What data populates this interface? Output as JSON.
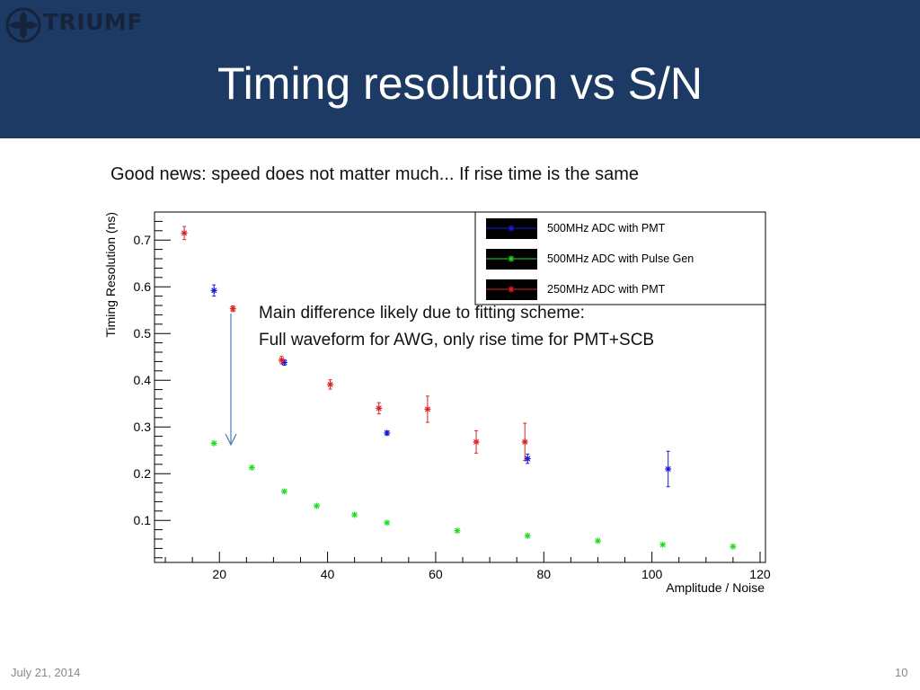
{
  "slide": {
    "title": "Timing resolution vs S/N",
    "subtitle": "Good news: speed does  not matter much... If rise time is the same",
    "date": "July 21, 2014",
    "page_number": "10",
    "logo_text": "TRIUMF",
    "annotation_line1": "Main difference likely due to fitting scheme:",
    "annotation_line2": "Full waveform for AWG, only rise time for PMT+SCB",
    "header_color": "#1c3a64"
  },
  "chart_data": {
    "type": "scatter",
    "xlabel": "Amplitude / Noise",
    "ylabel": "Timing Resolution (ns)",
    "xlim": [
      8,
      121
    ],
    "ylim": [
      0.01,
      0.76
    ],
    "xticks": [
      20,
      40,
      60,
      80,
      100,
      120
    ],
    "yticks": [
      0.1,
      0.2,
      0.3,
      0.4,
      0.5,
      0.6,
      0.7
    ],
    "legend_position": "top-right",
    "series": [
      {
        "name": "500MHz ADC with PMT",
        "color": "#1a1ad8",
        "points": [
          {
            "x": 19,
            "y": 0.592,
            "err": 0.012
          },
          {
            "x": 32,
            "y": 0.438,
            "err": 0.006
          },
          {
            "x": 51,
            "y": 0.287,
            "err": 0.004
          },
          {
            "x": 77,
            "y": 0.232,
            "err": 0.01
          },
          {
            "x": 103,
            "y": 0.21,
            "err": 0.038
          }
        ]
      },
      {
        "name": "500MHz ADC with Pulse Gen",
        "color": "#22dd22",
        "points": [
          {
            "x": 19,
            "y": 0.265,
            "err": 0
          },
          {
            "x": 26,
            "y": 0.213,
            "err": 0
          },
          {
            "x": 32,
            "y": 0.162,
            "err": 0
          },
          {
            "x": 38,
            "y": 0.131,
            "err": 0
          },
          {
            "x": 45,
            "y": 0.112,
            "err": 0
          },
          {
            "x": 51,
            "y": 0.095,
            "err": 0
          },
          {
            "x": 64,
            "y": 0.078,
            "err": 0
          },
          {
            "x": 77,
            "y": 0.067,
            "err": 0
          },
          {
            "x": 90,
            "y": 0.056,
            "err": 0
          },
          {
            "x": 102,
            "y": 0.048,
            "err": 0
          },
          {
            "x": 115,
            "y": 0.044,
            "err": 0
          }
        ]
      },
      {
        "name": "250MHz ADC with PMT",
        "color": "#dd2222",
        "points": [
          {
            "x": 13.5,
            "y": 0.715,
            "err": 0.014
          },
          {
            "x": 22.5,
            "y": 0.553,
            "err": 0.006
          },
          {
            "x": 31.5,
            "y": 0.443,
            "err": 0.008
          },
          {
            "x": 40.5,
            "y": 0.391,
            "err": 0.01
          },
          {
            "x": 49.5,
            "y": 0.34,
            "err": 0.012
          },
          {
            "x": 58.5,
            "y": 0.338,
            "err": 0.028
          },
          {
            "x": 67.5,
            "y": 0.268,
            "err": 0.024
          },
          {
            "x": 76.5,
            "y": 0.268,
            "err": 0.04
          }
        ]
      }
    ]
  }
}
